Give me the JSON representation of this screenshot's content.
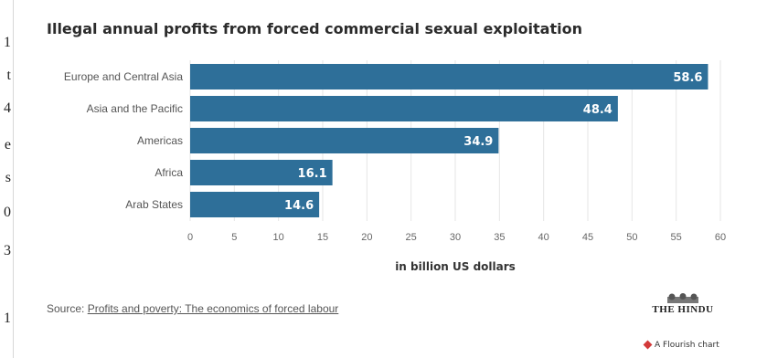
{
  "gutter_chars": [
    "1",
    "t",
    "4",
    "e",
    "s",
    "0",
    "3",
    "1"
  ],
  "colors": {
    "bar": "#2e6f99",
    "grid": "#e6e6e6",
    "flourish": "#d33a3a"
  },
  "source": {
    "prefix": "Source: ",
    "link_text": "Profits and poverty: The economics of forced labour"
  },
  "brand": {
    "name": "THE HINDU",
    "emblem_icon": "the-hindu-emblem-icon"
  },
  "flourish": {
    "label": "A Flourish chart",
    "icon": "flourish-diamond-icon"
  },
  "chart_data": {
    "type": "bar",
    "orientation": "horizontal",
    "title": "Illegal annual profits from forced commercial sexual exploitation",
    "categories": [
      "Europe and Central Asia",
      "Asia and the Pacific",
      "Americas",
      "Africa",
      "Arab States"
    ],
    "values": [
      58.6,
      48.4,
      34.9,
      16.1,
      14.6
    ],
    "data_labels": [
      "58.6",
      "48.4",
      "34.9",
      "16.1",
      "14.6"
    ],
    "xlabel": "in billion US dollars",
    "ylabel": "",
    "xlim": [
      0,
      60
    ],
    "xticks": [
      "0",
      "5",
      "10",
      "15",
      "20",
      "25",
      "30",
      "35",
      "40",
      "45",
      "50",
      "55",
      "60"
    ],
    "grid": true
  }
}
